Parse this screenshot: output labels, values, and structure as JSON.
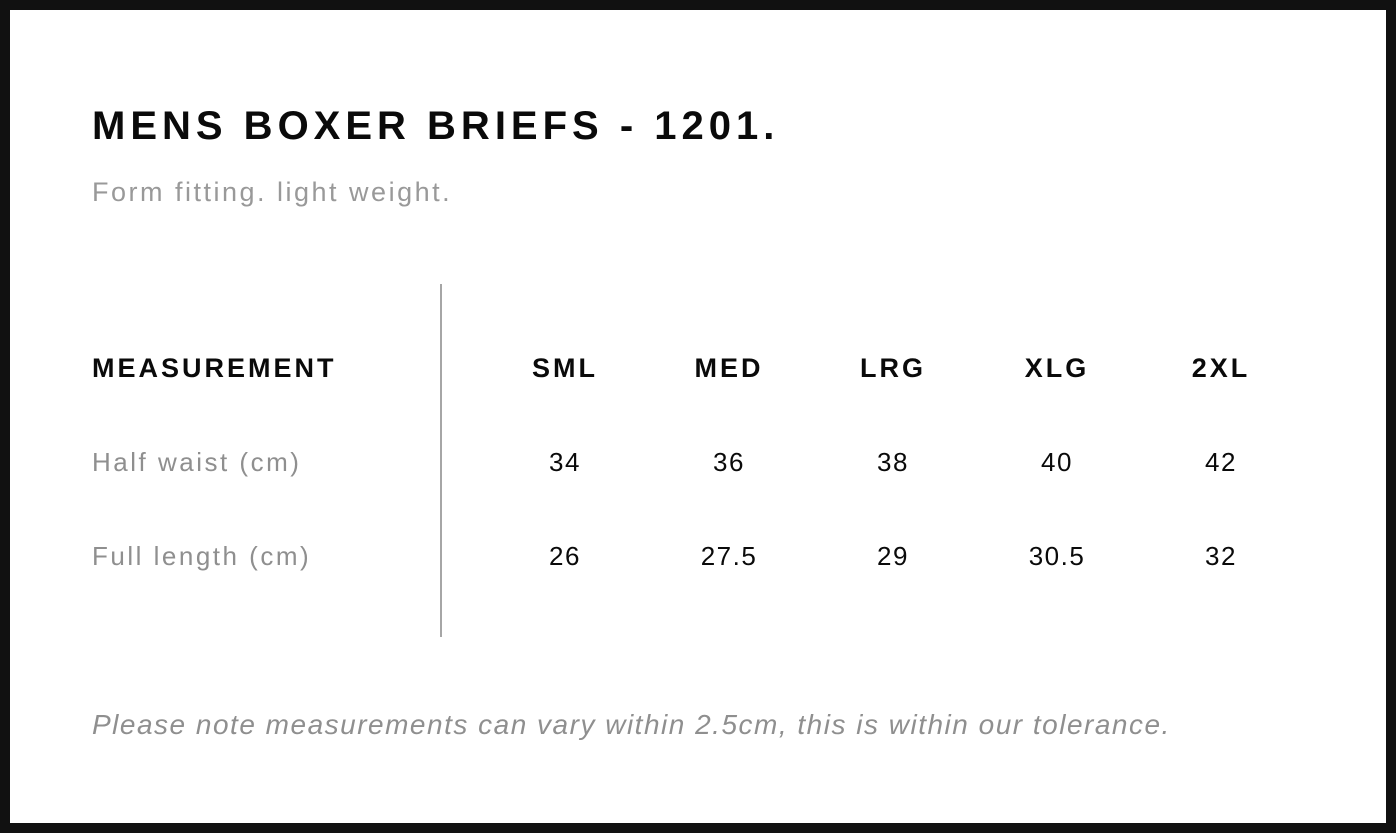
{
  "page": {
    "title": "MENS BOXER BRIEFS - 1201.",
    "subtitle": "Form fitting. light weight.",
    "tolerance_note": "Please note measurements can vary within 2.5cm, this is within our tolerance."
  },
  "size_chart": {
    "header_label": "MEASUREMENT",
    "size_headers": [
      "SML",
      "MED",
      "LRG",
      "XLG",
      "2XL"
    ],
    "rows": [
      {
        "label": "Half waist (cm)",
        "values": [
          "34",
          "36",
          "38",
          "40",
          "42"
        ]
      },
      {
        "label": "Full length (cm)",
        "values": [
          "26",
          "27.5",
          "29",
          "30.5",
          "32"
        ]
      }
    ]
  },
  "colors": {
    "text_primary": "#0a0a0a",
    "text_muted_gray": "#8f8f8f",
    "subtitle_gray": "#999999",
    "divider_gray": "#a6a6a6",
    "frame_black": "#111111",
    "background": "#ffffff"
  }
}
